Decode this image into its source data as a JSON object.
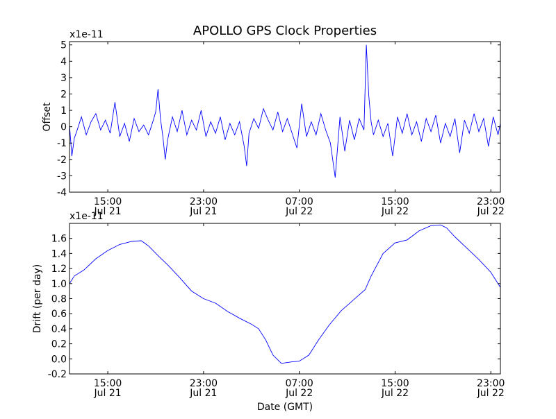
{
  "figure": {
    "title": "APOLLO GPS Clock Properties",
    "xlabel": "Date (GMT)"
  },
  "chart_data": [
    {
      "type": "line",
      "name": "offset",
      "ylabel": "Offset",
      "scale_label": "x1e-11",
      "line_color": "#0000ff",
      "ylim": [
        -4,
        5.2
      ],
      "yticks": [
        -4,
        -3,
        -2,
        -1,
        0,
        1,
        2,
        3,
        4,
        5
      ],
      "xlim": [
        11.8,
        47.8
      ],
      "xticks": [
        {
          "x": 15,
          "time": "15:00",
          "date": "Jul 21"
        },
        {
          "x": 23,
          "time": "23:00",
          "date": "Jul 21"
        },
        {
          "x": 31,
          "time": "07:00",
          "date": "Jul 22"
        },
        {
          "x": 39,
          "time": "15:00",
          "date": "Jul 22"
        },
        {
          "x": 47,
          "time": "23:00",
          "date": "Jul 22"
        }
      ],
      "x": [
        11.8,
        12.0,
        12.2,
        12.4,
        12.8,
        13.2,
        13.6,
        14.0,
        14.4,
        14.8,
        15.2,
        15.6,
        16.0,
        16.4,
        16.8,
        17.2,
        17.6,
        18.0,
        18.4,
        18.8,
        19.0,
        19.2,
        19.4,
        19.6,
        19.8,
        20.0,
        20.4,
        20.8,
        21.2,
        21.6,
        22.0,
        22.4,
        22.8,
        23.2,
        23.6,
        24.0,
        24.4,
        24.8,
        25.2,
        25.6,
        26.0,
        26.4,
        26.6,
        26.8,
        27.2,
        27.6,
        28.0,
        28.4,
        28.8,
        29.2,
        29.6,
        30.0,
        30.4,
        30.8,
        31.2,
        31.6,
        32.0,
        32.4,
        32.8,
        33.2,
        33.6,
        34.0,
        34.4,
        34.8,
        35.2,
        35.6,
        36.0,
        36.4,
        36.6,
        36.8,
        37.0,
        37.2,
        37.6,
        38.0,
        38.4,
        38.8,
        39.2,
        39.6,
        40.0,
        40.4,
        40.8,
        41.2,
        41.6,
        42.0,
        42.4,
        42.8,
        43.2,
        43.6,
        44.0,
        44.4,
        44.8,
        45.2,
        45.6,
        46.0,
        46.4,
        46.8,
        47.2,
        47.6,
        47.8
      ],
      "y": [
        0.1,
        -1.8,
        -0.7,
        -0.3,
        0.6,
        -0.5,
        0.3,
        0.8,
        -0.2,
        0.4,
        -0.4,
        1.5,
        -0.6,
        0.2,
        -0.9,
        0.5,
        -0.3,
        0.1,
        -0.5,
        0.4,
        0.9,
        2.3,
        0.5,
        -0.6,
        -2.0,
        -0.8,
        0.6,
        -0.3,
        1.0,
        -0.5,
        0.4,
        -0.2,
        1.0,
        -0.6,
        0.3,
        -0.4,
        0.6,
        -0.8,
        0.2,
        -0.5,
        0.3,
        -1.2,
        -2.4,
        -0.4,
        0.5,
        -0.1,
        1.1,
        0.4,
        -0.2,
        0.9,
        -0.3,
        0.5,
        -0.4,
        -1.3,
        1.4,
        -0.6,
        0.3,
        -0.5,
        0.8,
        -0.2,
        -1.0,
        -3.1,
        0.6,
        -1.5,
        0.4,
        -0.8,
        0.5,
        -0.2,
        5.0,
        1.9,
        0.3,
        -0.5,
        0.4,
        -0.6,
        0.2,
        -1.8,
        0.6,
        -0.4,
        0.8,
        -0.5,
        0.3,
        -0.9,
        0.5,
        -0.3,
        0.7,
        -1.0,
        0.2,
        -0.6,
        0.5,
        -1.6,
        0.4,
        -0.4,
        0.8,
        -0.3,
        0.5,
        -1.2,
        0.6,
        -0.5,
        0.2
      ]
    },
    {
      "type": "line",
      "name": "drift",
      "ylabel": "Drift (per day)",
      "scale_label": "x1e-11",
      "line_color": "#0000ff",
      "ylim": [
        -0.2,
        1.8
      ],
      "yticks": [
        -0.2,
        0.0,
        0.2,
        0.4,
        0.6,
        0.8,
        1.0,
        1.2,
        1.4,
        1.6
      ],
      "xlim": [
        11.8,
        47.8
      ],
      "xticks": [
        {
          "x": 15,
          "time": "15:00",
          "date": "Jul 21"
        },
        {
          "x": 23,
          "time": "23:00",
          "date": "Jul 21"
        },
        {
          "x": 31,
          "time": "07:00",
          "date": "Jul 22"
        },
        {
          "x": 39,
          "time": "15:00",
          "date": "Jul 22"
        },
        {
          "x": 47,
          "time": "23:00",
          "date": "Jul 22"
        }
      ],
      "x": [
        11.8,
        12.2,
        13.0,
        14.0,
        15.0,
        16.0,
        17.0,
        17.8,
        18.4,
        19.4,
        20.0,
        21.0,
        22.0,
        23.0,
        24.0,
        25.0,
        26.0,
        27.0,
        27.6,
        28.2,
        28.8,
        29.5,
        30.4,
        31.0,
        31.8,
        32.6,
        33.5,
        34.5,
        35.5,
        36.5,
        37.0,
        38.0,
        39.0,
        40.0,
        41.0,
        42.0,
        42.8,
        43.3,
        44.0,
        45.0,
        46.0,
        47.0,
        47.8
      ],
      "y": [
        1.0,
        1.1,
        1.18,
        1.33,
        1.44,
        1.52,
        1.56,
        1.57,
        1.5,
        1.34,
        1.25,
        1.08,
        0.9,
        0.8,
        0.74,
        0.63,
        0.54,
        0.46,
        0.4,
        0.25,
        0.05,
        -0.06,
        -0.04,
        -0.03,
        0.05,
        0.25,
        0.45,
        0.64,
        0.78,
        0.92,
        1.1,
        1.4,
        1.54,
        1.58,
        1.7,
        1.77,
        1.78,
        1.74,
        1.62,
        1.47,
        1.32,
        1.15,
        0.95
      ]
    }
  ]
}
